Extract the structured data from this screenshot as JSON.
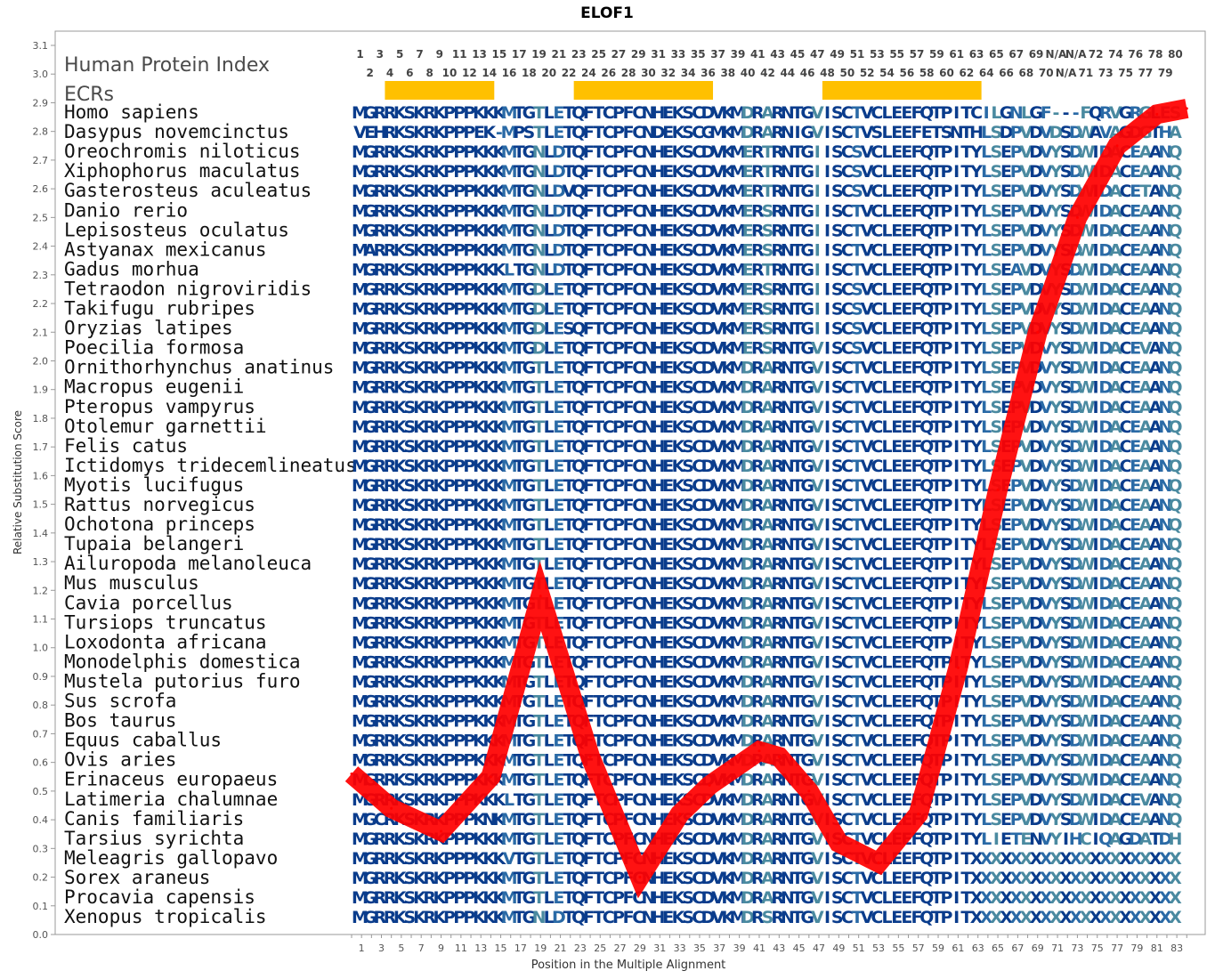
{
  "chart_data": {
    "type": "line",
    "title": "ELOF1",
    "xlabel": "Position in the Multiple Alignment",
    "ylabel": "Relative Substitution Score",
    "xlim": [
      0,
      84
    ],
    "ylim": [
      0.0,
      3.1
    ],
    "yticks": [
      "0.0",
      "0.1",
      "0.2",
      "0.3",
      "0.4",
      "0.5",
      "0.6",
      "0.7",
      "0.8",
      "0.9",
      "1.0",
      "1.1",
      "1.2",
      "1.3",
      "1.4",
      "1.5",
      "1.6",
      "1.7",
      "1.8",
      "1.9",
      "2.0",
      "2.1",
      "2.2",
      "2.3",
      "2.4",
      "2.5",
      "2.6",
      "2.7",
      "2.8",
      "2.9",
      "3.0",
      "3.1"
    ],
    "xticks": [
      "1",
      "3",
      "5",
      "7",
      "9",
      "11",
      "13",
      "15",
      "17",
      "19",
      "21",
      "23",
      "25",
      "27",
      "29",
      "31",
      "33",
      "35",
      "37",
      "39",
      "41",
      "43",
      "45",
      "47",
      "49",
      "51",
      "53",
      "55",
      "57",
      "59",
      "61",
      "63",
      "65",
      "67",
      "69",
      "71",
      "73",
      "75",
      "77",
      "79",
      "81",
      "83"
    ],
    "series": [
      {
        "color": "#ff0000",
        "x": [
          0,
          4,
          9,
          14,
          19,
          24,
          29,
          33,
          36,
          41,
          43,
          46,
          49,
          53,
          57,
          61,
          65,
          69,
          73,
          77,
          81,
          84
        ],
        "y": [
          0.56,
          0.44,
          0.36,
          0.55,
          1.18,
          0.62,
          0.2,
          0.42,
          0.52,
          0.64,
          0.62,
          0.5,
          0.32,
          0.25,
          0.42,
          0.93,
          1.55,
          2.1,
          2.5,
          2.75,
          2.86,
          2.88
        ]
      }
    ],
    "annotations": {
      "index_title": "Human Protein Index",
      "ecr_title": "ECRs",
      "ecr_color": "#ffc000",
      "ecr_regions": [
        [
          4,
          14
        ],
        [
          23,
          36
        ],
        [
          48,
          63
        ]
      ],
      "index_row1": [
        "1",
        "3",
        "5",
        "7",
        "9",
        "11",
        "13",
        "15",
        "17",
        "19",
        "21",
        "23",
        "25",
        "27",
        "29",
        "31",
        "33",
        "35",
        "37",
        "39",
        "41",
        "43",
        "45",
        "47",
        "49",
        "51",
        "53",
        "55",
        "57",
        "59",
        "61",
        "63",
        "65",
        "67",
        "69",
        "N/A",
        "N/A",
        "72",
        "74",
        "76",
        "78",
        "80"
      ],
      "index_row2": [
        "2",
        "4",
        "6",
        "8",
        "10",
        "12",
        "14",
        "16",
        "18",
        "20",
        "22",
        "24",
        "26",
        "28",
        "30",
        "32",
        "34",
        "36",
        "38",
        "40",
        "42",
        "44",
        "46",
        "48",
        "50",
        "52",
        "54",
        "56",
        "58",
        "60",
        "62",
        "64",
        "66",
        "68",
        "70",
        "N/A",
        "71",
        "73",
        "75",
        "77",
        "79"
      ]
    },
    "colors": {
      "conserved": "#0a3c8c",
      "medium": "#2a6aa6",
      "variable": "#4a8aa0",
      "divergent": "#6fa886"
    },
    "alignment": [
      {
        "species": "Homo sapiens",
        "seq": "MGRRKSKRKPPPKKKMTGTLETQFTCPFCNHEKSCDVKMDRARNTGVISCTVCLEEFQTPITCILGNLGF---FQRVGRGLES"
      },
      {
        "species": "Dasypus novemcinctus",
        "seq": "VEHRKSKRKPPPEK-MPSTLETQFTCPFCNDEKSCGMKMDRARNIGVISCTVSLEEFETSNTHLSDPVDVDSDWAVAGDGTHA"
      },
      {
        "species": "Oreochromis niloticus",
        "seq": "MGRRKSKRKPPPKKKMTGNLDTQFTCPFCNHEKSCDVKMERTRNTGIISCSVCLEEFQTPITYLSEPVDVYSDWIDACEAANQ"
      },
      {
        "species": "Xiphophorus maculatus",
        "seq": "MGRRKSKRKPPPKKKMTGNLDTQFTCPFCNHEKSCDVKMERTRNTGIISCSVCLEEFQTPITYLSEPVDVYSDWIDACEAANQ"
      },
      {
        "species": "Gasterosteus aculeatus",
        "seq": "MGRRKSKRKPPPKKKMTGNLDVQFTCPFCNHEKSCDVKMERTRNTGIISCSVCLEEFQTPITYLSEPVDVYSDWIDACETANQ"
      },
      {
        "species": "Danio rerio",
        "seq": "MGRRKSKRKPPPKKKMTGNLDTQFTCPFCNHEKSCDVKMERSRNTGIISCTVCLEEFQTPITYLSEPVDVYSDWIDACEAANQ"
      },
      {
        "species": "Lepisosteus oculatus",
        "seq": "MGRRKSKRKPPPKKKMTGNLDTQFTCPFCNHEKSCDVKMERSRNTGIISCTVCLEEFQTPITYLSEPVDVYSDWIDACEAANQ"
      },
      {
        "species": "Astyanax mexicanus",
        "seq": "MARRKSKRKPPPKKKMTGNLDTQFTCPFCNHEKSCDVKMERSRNTGIISCTVCLEEFQTPITYLSEPVDVYSDWIDACEAANQ"
      },
      {
        "species": "Gadus morhua",
        "seq": "MGRRKSKRKPPPKKKLTGNLDTQFTCPFCNHEKSCDVKMERTRNTGIISCTVCLEEFQTPITYLSEAVDVYSDWIDACEAANQ"
      },
      {
        "species": "Tetraodon nigroviridis",
        "seq": "MGRRKSKRKPPPKKKMTGDLETQFTCPFCNHEKSCDVKMERSRNTGIISCSVCLEEFQTPITYLSEPVDVYSDWIDACEAANQ"
      },
      {
        "species": "Takifugu rubripes",
        "seq": "MGRRKSKRKPPPKKKMTGDLETQFTCPFCNHEKSCDVKMERSRNTGIISCSVCLEEFQTPITYLSEPVDVYSDWIDACEAANQ"
      },
      {
        "species": "Oryzias latipes",
        "seq": "MGRRKSKRKPPPKKKMTGDLESQFTCPFCNHEKSCDVKMERSRNTGIISCSVCLEEFQTPITYLSEPVDVYSDWIDACEAANQ"
      },
      {
        "species": "Poecilia formosa",
        "seq": "MGRRKSKRKPPPKKKMTGDLETQFTCPFCNHEKSCDVKMERSRNTGVISCSVCLEEFQTPITYLSEPVDVYSDWIDACEVANQ"
      },
      {
        "species": "Ornithorhynchus anatinus",
        "seq": "MGRRKSKRKPPPKKKMTGTLETQFTCPFCNHEKSCDVKMDRARNTGVISCTVCLEEFQTPITYLSEPVDVYSDWIDACEAANQ"
      },
      {
        "species": "Macropus eugenii",
        "seq": "MGRRKSKRKPPPKKKMTGTLETQFTCPFCNHEKSCDVKMDRARNTGVISCTVCLEEFQTPITYLSEPVDVYSDWIDACEAANQ"
      },
      {
        "species": "Pteropus vampyrus",
        "seq": "MGRRKSKRKPPPKKKMTGTLETQFTCPFCNHEKSCDVKMDRARNTGVISCTVCLEEFQTPITYLSEPVDVYSDWIDACEAANQ"
      },
      {
        "species": "Otolemur garnettii",
        "seq": "MGRRKSKRKPPPKKKMTGTLETQFTCPFCNHEKSCDVKMDRARNTGVISCTVCLEEFQTPITYLSEPVDVYSDWIDACEAANQ"
      },
      {
        "species": "Felis catus",
        "seq": "MGRRKSKRKPPPKKKMTGTLETQFTCPFCNHEKSCDVKMDRARNTGVISCTVCLEEFQTPITYLSEPVDVYSDWIDACEAANQ"
      },
      {
        "species": "Ictidomys tridecemlineatus",
        "seq": "MGRRKSKRKPPPKKKMTGTLETQFTCPFCNHEKSCDVKMDRARNTGVISCTVCLEEFQTPITYLSEPVDVYSDWIDACEAANQ"
      },
      {
        "species": "Myotis lucifugus",
        "seq": "MGRRKSKRKPPPKKKMTGTLETQFTCPFCNHEKSCDVKMDRARNTGVISCTVCLEEFQTPITYLSEPVDVYSDWIDACEAANQ"
      },
      {
        "species": "Rattus norvegicus",
        "seq": "MGRRKSKRKPPPKKKMTGTLETQFTCPFCNHEKSCDVKMDRARNTGVISCTVCLEEFQTPITYLSEPVDVYSDWIDACEAANQ"
      },
      {
        "species": "Ochotona princeps",
        "seq": "MGRRKSKRKPPPKKKMTGTLETQFTCPFCNHEKSCDVKMDRARNTGVISCTVCLEEFQTPITYLSEPVDVYSDWIDACEAANQ"
      },
      {
        "species": "Tupaia belangeri",
        "seq": "MGRRKSKRKPPPKKKMTGTLETQFTCPFCNHEKSCDVKMDRARNTGVISCTVCLEEFQTPITYLSEPVDVYSDWIDACEAANQ"
      },
      {
        "species": "Ailuropoda melanoleuca",
        "seq": "MGRRKSKRKPPPKKKMTGTLETQFTCPFCNHEKSCDVKMDRARNTGVISCTVCLEEFQTPITYLSEPVDVYSDWIDACEAANQ"
      },
      {
        "species": "Mus musculus",
        "seq": "MGRRKSKRKPPPKKKMTGTLETQFTCPFCNHEKSCDVKMDRARNTGVISCTVCLEEFQTPITYLSEPVDVYSDWIDACEAANQ"
      },
      {
        "species": "Cavia porcellus",
        "seq": "MGRRKSKRKPPPKKKMTGTLETQFTCPFCNHEKSCDVKMDRARNTGVISCTVCLEEFQTPITYLSEPVDVYSDWIDACEAANQ"
      },
      {
        "species": "Tursiops truncatus",
        "seq": "MGRRKSKRKPPPKKKMTGTLETQFTCPFCNHEKSCDVKMDRARNTGVISCTVCLEEFQTPITYLSEPVDVYSDWIDACEAANQ"
      },
      {
        "species": "Loxodonta africana",
        "seq": "MGRRKSKRKPPPKKKMTGTLETQFTCPFCNHEKSCDVKMDRARNTGVISCTVCLEEFQTPITYLSEPVDVYSDWIDACEAANQ"
      },
      {
        "species": "Monodelphis domestica",
        "seq": "MGRRKSKRKPPPKKKMTGTLETQFTCPFCNHEKSCDVKMDRARNTGVISCTVCLEEFQTPITYLSEPVDVYSDWIDACEAANQ"
      },
      {
        "species": "Mustela putorius furo",
        "seq": "MGRRKSKRKPPPKKKMTGTLETQFTCPFCNHEKSCDVKMDRARNTGVISCTVCLEEFQTPITYLSEPVDVYSDWIDACEAANQ"
      },
      {
        "species": "Sus scrofa",
        "seq": "MGRRKSKRKPPPKKKMTGTLETQFTCPFCNHEKSCDVKMDRARNTGVISCTVCLEEFQTPITYLSEPVDVYSDWIDACEAANQ"
      },
      {
        "species": "Bos taurus",
        "seq": "MGRRKSKRKPPPKKKMTGTLETQFTCPFCNHEKSCDVKMDRARNTGVISCTVCLEEFQTPITYLSEPVDVYSDWIDACEAANQ"
      },
      {
        "species": "Equus caballus",
        "seq": "MGRRKSKRKPPPKKKMTGTLETQFTCPFCNHEKSCDVKMDRARNTGVISCTVCLEEFQTPITYLSEPVDVYSDWIDACEAANQ"
      },
      {
        "species": "Ovis aries",
        "seq": "MGRRKSKRKPPPKKKMTGTLETQFTCPFCNHEKSCDVKMDRARNTGVISCTVCLEEFQTPITYLSEPVDVYSDWIDACEAANQ"
      },
      {
        "species": "Erinaceus europaeus",
        "seq": "MGRRKSKRKPPPKKKMTGTLETQFTCPFCNHEKSCDVKMDRARNTGVISCTVCLEEFQTPITYLSEPVDVYSDWIDACEAANQ"
      },
      {
        "species": "Latimeria chalumnae",
        "seq": "MGRRKSKRKPPPKKKLTGTLETQFTCPFCNHEKSCDVKMDRARNTGVISCTVCLEEFQTPITYLSEPVDVYSDWIDACEVANQ"
      },
      {
        "species": "Canis familiaris",
        "seq": "MGCRKSKRKPPPKNKMTGTLETQFTCPFCNHEKSCDVKMDRARNTGVISCTVCLEEFQTPITYLSEPVDVYSDWIDACEAANQ"
      },
      {
        "species": "Tarsius syrichta",
        "seq": "MGRRKSKRKPPPKKKMTGTLETQFTCPFCNHEKSCDVKMDRARNTGVISCTVCLEEFQTPITYLIETENVYIHCIQAGDATDH"
      },
      {
        "species": "Meleagris gallopavo",
        "seq": "MGRRKSKRKPPPKKKVTGTLETQFTCPFCNHEKSCDVKMDRARNTGVISCTVCLEEFQTPITXXXXXXXXXXXXXXXXXXXXX"
      },
      {
        "species": "Sorex araneus",
        "seq": "MGRRKSKRKPPPKKKMTGTLETQFTCPFCNHEKSCDVKMDRARNTGVISCTVCLEEFQTPITXXXXXXXXXXXXXXXXXXXXX"
      },
      {
        "species": "Procavia capensis",
        "seq": "MGRRKSKRKPPPKKKMTGTLETQFTCPFCNHEKSCDVKMDRARNTGVISCTVCLEEFQTPITXXXXXXXXXXXXXXXXXXXXX"
      },
      {
        "species": "Xenopus tropicalis",
        "seq": "MGRRKSKRKPPPKKKMTGNLDTQFTCPFCNHEKSCDVKMDRSRNTGVISCTVCLEEFQTPITXXXXXXXXXXXXXXXXXXXXX"
      }
    ]
  }
}
